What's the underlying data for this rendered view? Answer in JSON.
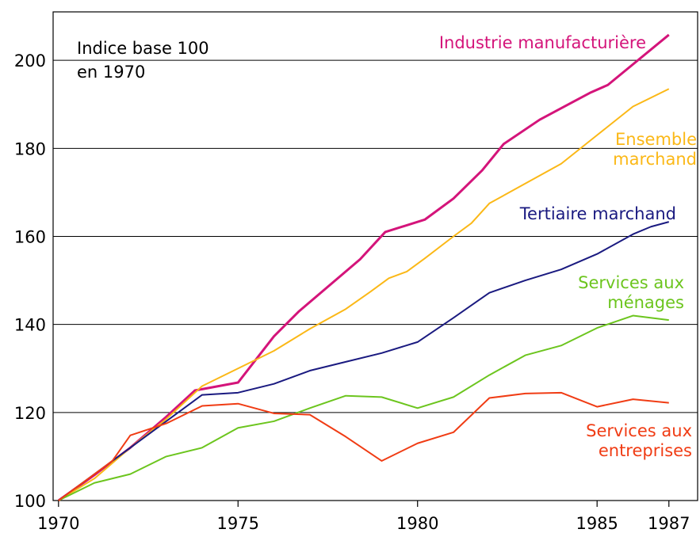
{
  "chart_data": {
    "type": "line",
    "annotation": [
      "Indice base 100",
      "en 1970"
    ],
    "xlim": [
      1969.85,
      1987.8
    ],
    "xticks": [
      1970,
      1975,
      1980,
      1985,
      1987
    ],
    "ylim": [
      100,
      211
    ],
    "yticks": [
      100,
      120,
      140,
      160,
      180,
      200
    ],
    "grid": true,
    "series": [
      {
        "name": "Industrie manufacturière",
        "color": "#d4147a",
        "x": [
          1970,
          1971,
          1972,
          1973,
          1973.8,
          1975,
          1976,
          1976.7,
          1978.4,
          1979.1,
          1980.2,
          1981,
          1981.8,
          1982.4,
          1983.4,
          1984.8,
          1985.3,
          1987
        ],
        "values": [
          100,
          105.8,
          112,
          119,
          125,
          126.8,
          137.3,
          143,
          154.8,
          161,
          163.8,
          168.6,
          175,
          181,
          186.5,
          192.6,
          194.4,
          205.8
        ]
      },
      {
        "name": "Ensemble marchand",
        "color": "#fbb817",
        "x": [
          1970,
          1971,
          1972,
          1973,
          1974,
          1975,
          1976,
          1977,
          1978,
          1978.7,
          1979.2,
          1979.7,
          1980.2,
          1981,
          1981.5,
          1982,
          1983,
          1984,
          1985,
          1986,
          1987
        ],
        "values": [
          100,
          105,
          112,
          118.5,
          126,
          130,
          134,
          139,
          143.5,
          147.5,
          150.5,
          152,
          155,
          160,
          163,
          167.5,
          172,
          176.5,
          183,
          189.5,
          193.5
        ]
      },
      {
        "name": "Tertiaire marchand",
        "color": "#1a1a80",
        "x": [
          1970,
          1971,
          1972,
          1973,
          1974,
          1975,
          1976,
          1977,
          1978,
          1979,
          1980,
          1981,
          1982,
          1983,
          1984,
          1985,
          1986,
          1986.5,
          1987
        ],
        "values": [
          100,
          106,
          112,
          118,
          124,
          124.5,
          126.5,
          129.5,
          131.5,
          133.5,
          136,
          141.5,
          147.2,
          150,
          152.5,
          156,
          160.5,
          162.2,
          163.3
        ]
      },
      {
        "name": "Services aux ménages",
        "color": "#6cc51e",
        "x": [
          1970,
          1971,
          1972,
          1973,
          1974,
          1975,
          1976,
          1977,
          1978,
          1979,
          1980,
          1981,
          1982,
          1983,
          1984,
          1985,
          1986,
          1987
        ],
        "values": [
          100,
          104,
          106,
          110,
          112,
          116.5,
          118,
          121,
          123.8,
          123.5,
          121,
          123.5,
          128.5,
          133,
          135.2,
          139.2,
          142,
          141
        ]
      },
      {
        "name": "Services aux entreprises",
        "color": "#f03c14",
        "x": [
          1970,
          1971,
          1971.5,
          1972,
          1973,
          1974,
          1975,
          1976,
          1977,
          1978,
          1979,
          1980,
          1981,
          1982,
          1983,
          1984,
          1985,
          1986,
          1987
        ],
        "values": [
          100,
          106,
          109,
          114.8,
          117.5,
          121.5,
          122,
          119.8,
          119.5,
          114.5,
          109,
          113,
          115.5,
          123.3,
          124.3,
          124.5,
          121.3,
          123,
          122.2
        ]
      }
    ]
  }
}
